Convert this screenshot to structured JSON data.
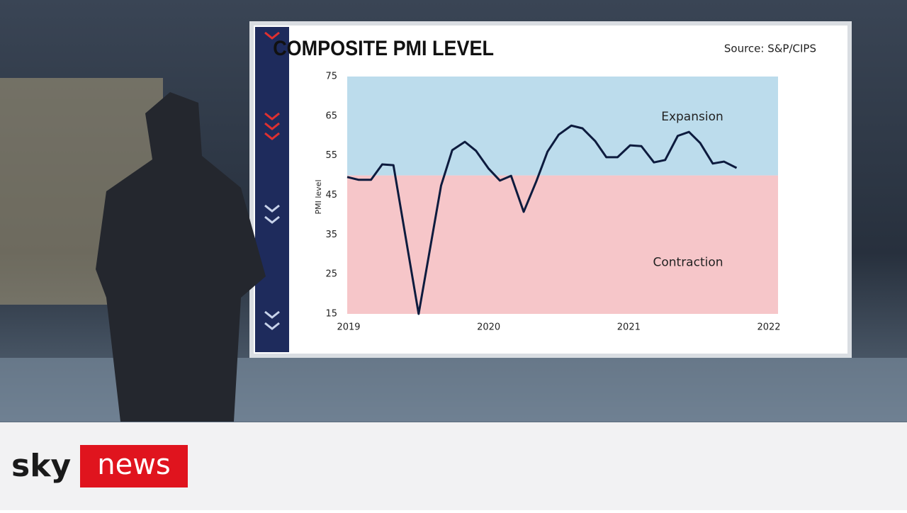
{
  "chart_data": {
    "type": "line",
    "title": "COMPOSITE PMI LEVEL",
    "source": "Source: S&P/CIPS",
    "y_label": "PMI level",
    "x": [
      2019.0,
      2019.08,
      2019.17,
      2019.25,
      2019.33,
      2019.51,
      2019.67,
      2019.75,
      2019.84,
      2019.92,
      2020.01,
      2020.09,
      2020.17,
      2020.26,
      2020.35,
      2020.43,
      2020.51,
      2020.6,
      2020.68,
      2020.77,
      2020.85,
      2020.93,
      2021.02,
      2021.1,
      2021.19,
      2021.27,
      2021.36,
      2021.44,
      2021.52,
      2021.61,
      2021.69,
      2021.78
    ],
    "series": [
      {
        "name": "Composite PMI",
        "color": "#0d1b3e",
        "values": [
          49.6,
          48.9,
          48.9,
          52.8,
          52.6,
          15,
          47.4,
          56.4,
          58.5,
          56.2,
          51.7,
          48.7,
          49.9,
          40.8,
          48.5,
          56.0,
          60.3,
          62.6,
          61.9,
          58.7,
          54.6,
          54.6,
          57.6,
          57.4,
          53.3,
          53.9,
          60.0,
          61.0,
          58.2,
          53.0,
          53.5,
          51.9
        ]
      }
    ],
    "bands": [
      {
        "label": "Expansion",
        "from": 50,
        "to": 75,
        "color": "#bcdcec"
      },
      {
        "label": "Contraction",
        "from": 15,
        "to": 50,
        "color": "#f6c6c9"
      }
    ],
    "xlim": [
      2019,
      2022
    ],
    "xticks": [
      2019,
      2020,
      2021,
      2022
    ],
    "ylim": [
      15,
      75
    ],
    "yticks": [
      15,
      25,
      35,
      45,
      55,
      65,
      75
    ]
  },
  "branding": {
    "left": "sky",
    "right": "news"
  }
}
